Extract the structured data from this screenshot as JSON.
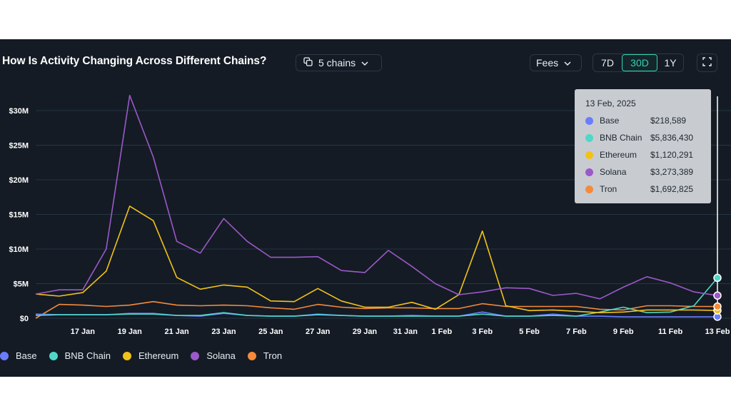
{
  "header": {
    "title": "How Is Activity Changing Across Different Chains?",
    "chains_label": "5 chains",
    "metric_label": "Fees",
    "ranges": [
      "7D",
      "30D",
      "1Y"
    ],
    "active_range": "30D"
  },
  "icons": {
    "chains": "stacked-squares-icon",
    "chevron": "chevron-down-icon",
    "expand": "expand-corners-icon"
  },
  "tooltip": {
    "date": "13 Feb, 2025",
    "rows": [
      {
        "name": "Base",
        "value": "$218,589"
      },
      {
        "name": "BNB Chain",
        "value": "$5,836,430"
      },
      {
        "name": "Ethereum",
        "value": "$1,120,291"
      },
      {
        "name": "Solana",
        "value": "$3,273,389"
      },
      {
        "name": "Tron",
        "value": "$1,692,825"
      }
    ]
  },
  "legend": [
    "Base",
    "BNB Chain",
    "Ethereum",
    "Solana",
    "Tron"
  ],
  "colors": {
    "Base": "#6b7cff",
    "BNB Chain": "#4fd8c8",
    "Ethereum": "#f2c21b",
    "Solana": "#9b59c9",
    "Tron": "#f58a3a",
    "background": "#141b24",
    "grid": "#253545",
    "accent": "#2fd3b3"
  },
  "chart_data": {
    "type": "line",
    "x": [
      "15 Jan",
      "16 Jan",
      "17 Jan",
      "18 Jan",
      "19 Jan",
      "20 Jan",
      "21 Jan",
      "22 Jan",
      "23 Jan",
      "24 Jan",
      "25 Jan",
      "26 Jan",
      "27 Jan",
      "28 Jan",
      "29 Jan",
      "30 Jan",
      "31 Jan",
      "1 Feb",
      "2 Feb",
      "3 Feb",
      "4 Feb",
      "5 Feb",
      "6 Feb",
      "7 Feb",
      "8 Feb",
      "9 Feb",
      "10 Feb",
      "11 Feb",
      "12 Feb",
      "13 Feb"
    ],
    "x_tick_labels": [
      "17 Jan",
      "19 Jan",
      "21 Jan",
      "23 Jan",
      "25 Jan",
      "27 Jan",
      "29 Jan",
      "31 Jan",
      "1 Feb",
      "3 Feb",
      "5 Feb",
      "7 Feb",
      "9 Feb",
      "11 Feb",
      "13 Feb"
    ],
    "y_tick_labels": [
      "$0",
      "$5M",
      "$10M",
      "$15M",
      "$20M",
      "$25M",
      "$30M"
    ],
    "y_ticks": [
      0,
      5000000,
      10000000,
      15000000,
      20000000,
      25000000,
      30000000
    ],
    "ylim": [
      0,
      32000000
    ],
    "grid": true,
    "legend_position": "bottom-left",
    "series": [
      {
        "name": "Base",
        "values": [
          600000,
          500000,
          500000,
          500000,
          700000,
          700000,
          400000,
          300000,
          700000,
          400000,
          300000,
          300000,
          600000,
          400000,
          300000,
          300000,
          400000,
          300000,
          300000,
          900000,
          300000,
          300000,
          600000,
          300000,
          300000,
          200000,
          200000,
          200000,
          200000,
          218589
        ]
      },
      {
        "name": "BNB Chain",
        "values": [
          400000,
          500000,
          500000,
          500000,
          600000,
          600000,
          400000,
          400000,
          800000,
          400000,
          300000,
          300000,
          500000,
          400000,
          300000,
          300000,
          300000,
          300000,
          300000,
          600000,
          300000,
          300000,
          400000,
          300000,
          900000,
          1600000,
          800000,
          900000,
          1800000,
          5836430
        ]
      },
      {
        "name": "Ethereum",
        "values": [
          3500000,
          3200000,
          3700000,
          6800000,
          16200000,
          14100000,
          5900000,
          4200000,
          4800000,
          4500000,
          2500000,
          2400000,
          4300000,
          2500000,
          1600000,
          1600000,
          2300000,
          1300000,
          3400000,
          12600000,
          1800000,
          1100000,
          1200000,
          1000000,
          800000,
          900000,
          1200000,
          1200000,
          1200000,
          1120291
        ]
      },
      {
        "name": "Solana",
        "values": [
          3500000,
          4100000,
          4100000,
          10000000,
          32200000,
          23300000,
          11100000,
          9400000,
          14400000,
          11100000,
          8800000,
          8800000,
          8900000,
          6900000,
          6600000,
          9800000,
          7500000,
          5000000,
          3400000,
          3800000,
          4400000,
          4300000,
          3300000,
          3600000,
          2800000,
          4500000,
          6000000,
          5100000,
          3800000,
          3273389
        ]
      },
      {
        "name": "Tron",
        "values": [
          0,
          2000000,
          1900000,
          1700000,
          1900000,
          2400000,
          1900000,
          1800000,
          1900000,
          1800000,
          1500000,
          1300000,
          2000000,
          1600000,
          1400000,
          1500000,
          1500000,
          1400000,
          1400000,
          2100000,
          1700000,
          1700000,
          1700000,
          1700000,
          1300000,
          1200000,
          1800000,
          1800000,
          1700000,
          1692825
        ]
      }
    ]
  }
}
